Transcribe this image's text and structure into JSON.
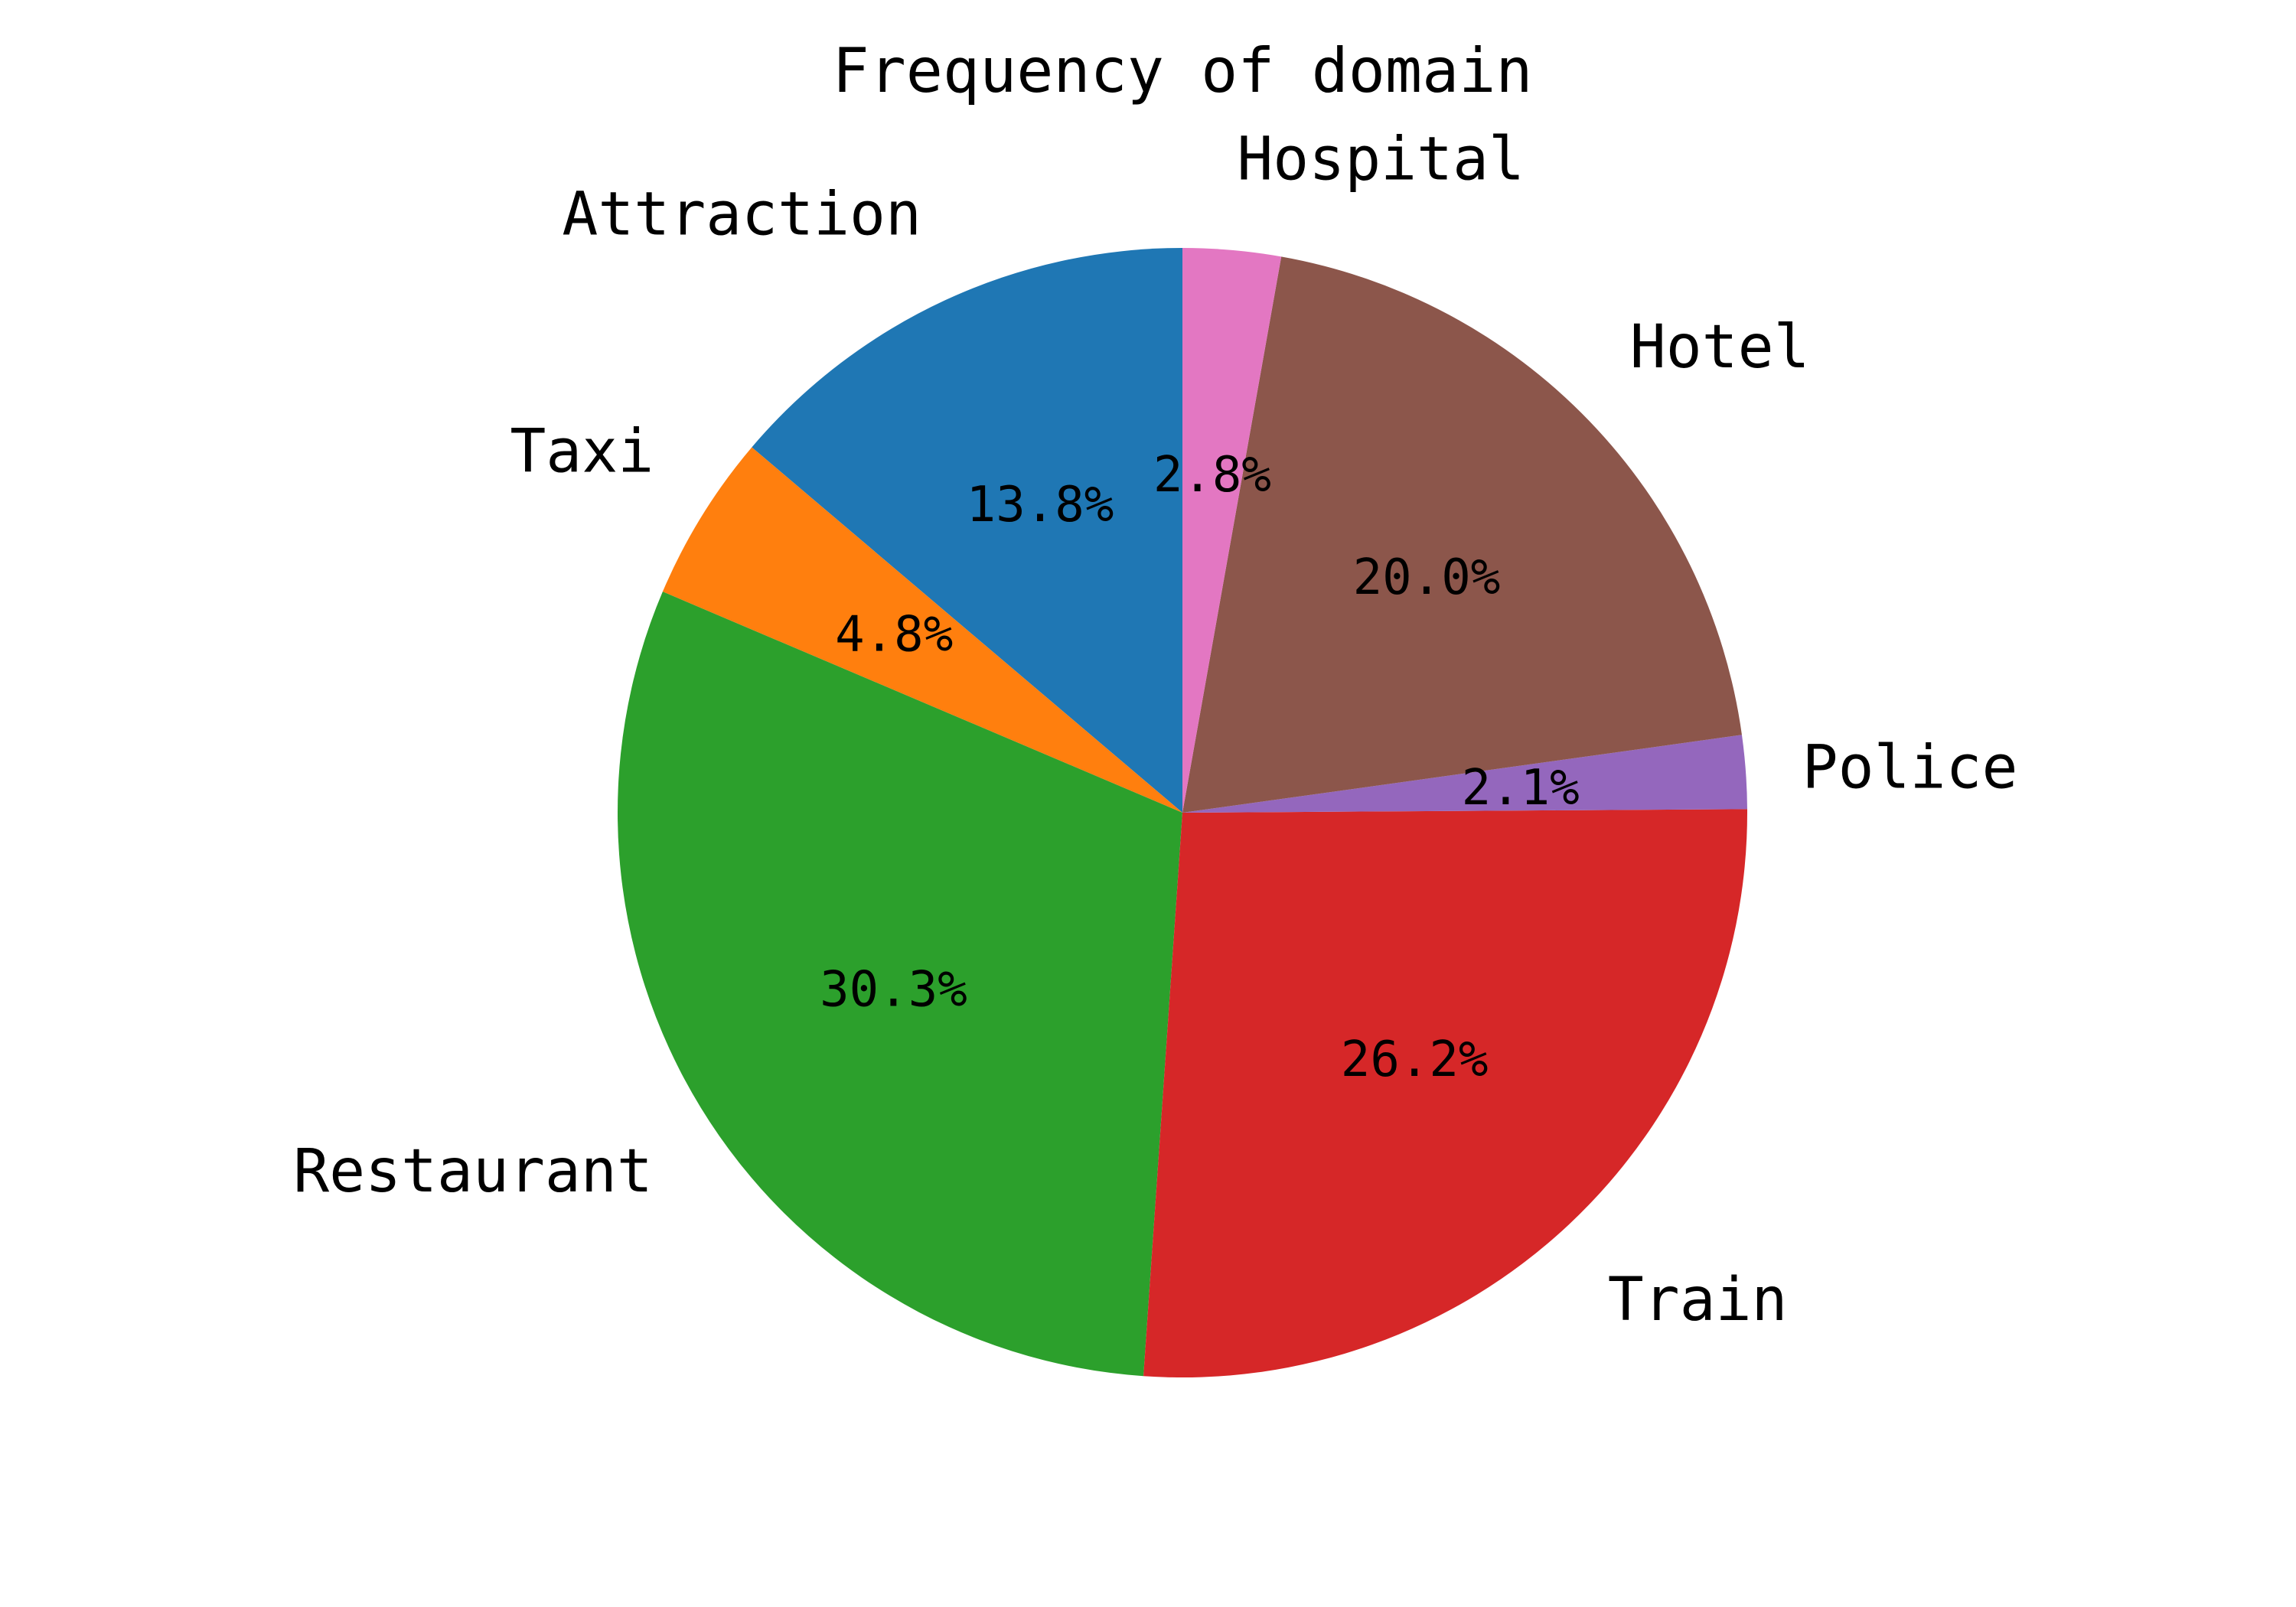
{
  "chart_data": {
    "type": "pie",
    "title": "Frequency of domain",
    "start_angle_deg": 90,
    "direction": "counterclockwise",
    "slices": [
      {
        "label": "Attraction",
        "value": 13.8,
        "pct_label": "13.8%",
        "color": "#1f77b4"
      },
      {
        "label": "Taxi",
        "value": 4.8,
        "pct_label": "4.8%",
        "color": "#ff7f0e"
      },
      {
        "label": "Restaurant",
        "value": 30.3,
        "pct_label": "30.3%",
        "color": "#2ca02c"
      },
      {
        "label": "Train",
        "value": 26.2,
        "pct_label": "26.2%",
        "color": "#d62728"
      },
      {
        "label": "Police",
        "value": 2.1,
        "pct_label": "2.1%",
        "color": "#9467bd"
      },
      {
        "label": "Hotel",
        "value": 20.0,
        "pct_label": "20.0%",
        "color": "#8c564b"
      },
      {
        "label": "Hospital",
        "value": 2.8,
        "pct_label": "2.8%",
        "color": "#e377c2"
      }
    ]
  }
}
